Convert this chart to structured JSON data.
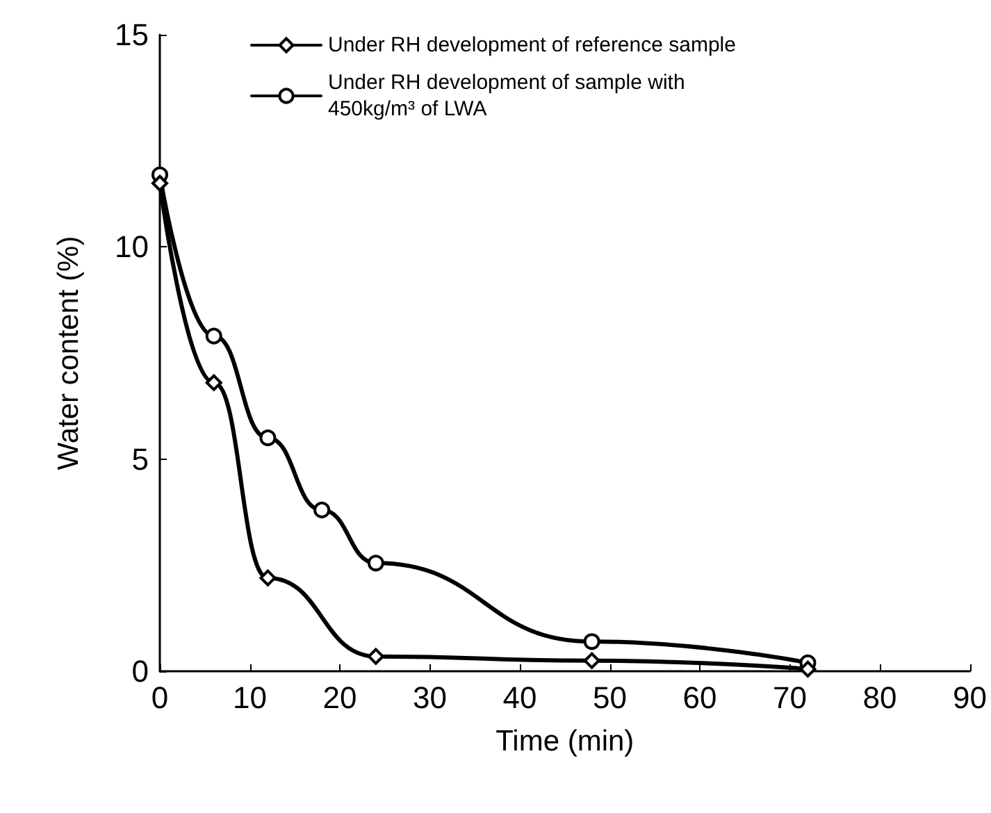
{
  "chart_data": {
    "type": "line",
    "xlabel": "Time (min)",
    "ylabel": "Water content (%)",
    "xlim": [
      0,
      90
    ],
    "xticks": [
      0,
      10,
      20,
      30,
      40,
      50,
      60,
      70,
      80,
      90
    ],
    "ylim": [
      0,
      15
    ],
    "yticks": [
      0,
      5,
      10,
      15
    ],
    "grid": false,
    "legend": "top left",
    "line_style": "solid",
    "series": [
      {
        "name": "Under RH development of reference sample",
        "color": "#000000",
        "marker": "diamond",
        "x": [
          0,
          6,
          12,
          24,
          48,
          72
        ],
        "values": [
          11.5,
          6.8,
          2.2,
          0.35,
          0.25,
          0.05
        ]
      },
      {
        "name": "Under RH development of sample with 450kg/m³ of LWA",
        "color": "#000000",
        "marker": "circle",
        "x": [
          0,
          6,
          12,
          18,
          24,
          48,
          72
        ],
        "values": [
          11.7,
          7.9,
          5.5,
          3.8,
          2.55,
          0.7,
          0.2
        ]
      }
    ]
  }
}
